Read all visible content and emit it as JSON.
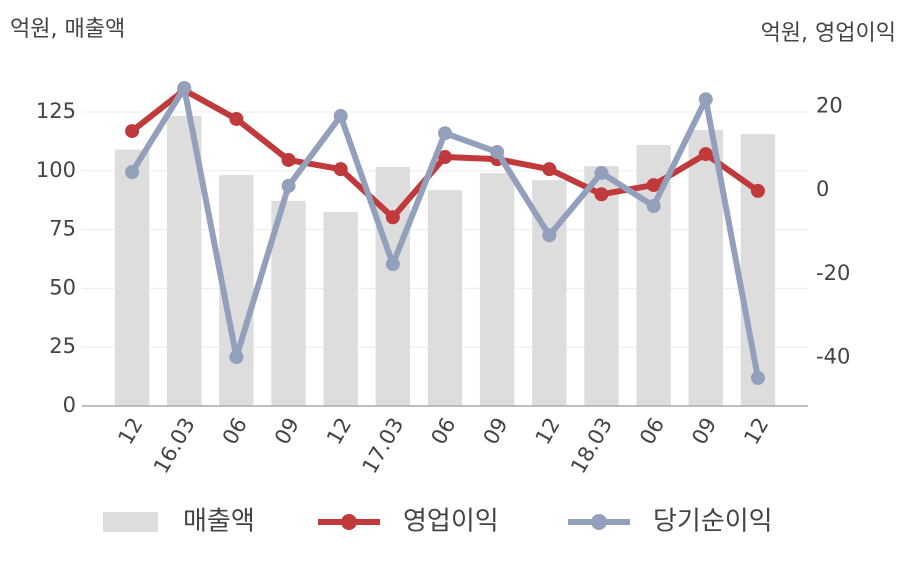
{
  "chart_data": {
    "type": "bar",
    "y_label": "억원, 매출액",
    "y2_label": "억원, 영업이익",
    "categories": [
      "12",
      "16.03",
      "06",
      "09",
      "12",
      "17.03",
      "06",
      "09",
      "12",
      "18.03",
      "06",
      "09",
      "12"
    ],
    "series": [
      {
        "name": "매출액",
        "type": "bar",
        "axis": "y",
        "color": "#dddddd",
        "values": [
          109,
          123.3,
          98.2,
          87.2,
          82.5,
          101.6,
          91.8,
          99,
          96,
          102,
          111,
          117.3,
          115.6
        ]
      },
      {
        "name": "영업이익",
        "type": "line",
        "axis": "y2",
        "color": "#c0393b",
        "values": [
          14.1,
          23.9,
          17,
          7.2,
          5,
          -6.5,
          7.9,
          7.4,
          5,
          -1,
          1.2,
          8.6,
          -0.2
        ]
      },
      {
        "name": "당기순이익",
        "type": "line",
        "axis": "y2",
        "color": "#93a0bb",
        "values": [
          4.3,
          24.4,
          -39.9,
          1,
          17.7,
          -17.7,
          13.6,
          9.1,
          -10.8,
          4.1,
          -3.8,
          21.7,
          -44.9
        ]
      }
    ],
    "ylim": [
      0,
      135.2
    ],
    "yticks": [
      0,
      25,
      50,
      75,
      100,
      125
    ],
    "y2lim": [
      -51.6,
      24.4
    ],
    "y2ticks": [
      -40,
      -20,
      0,
      20
    ],
    "grid": true
  }
}
